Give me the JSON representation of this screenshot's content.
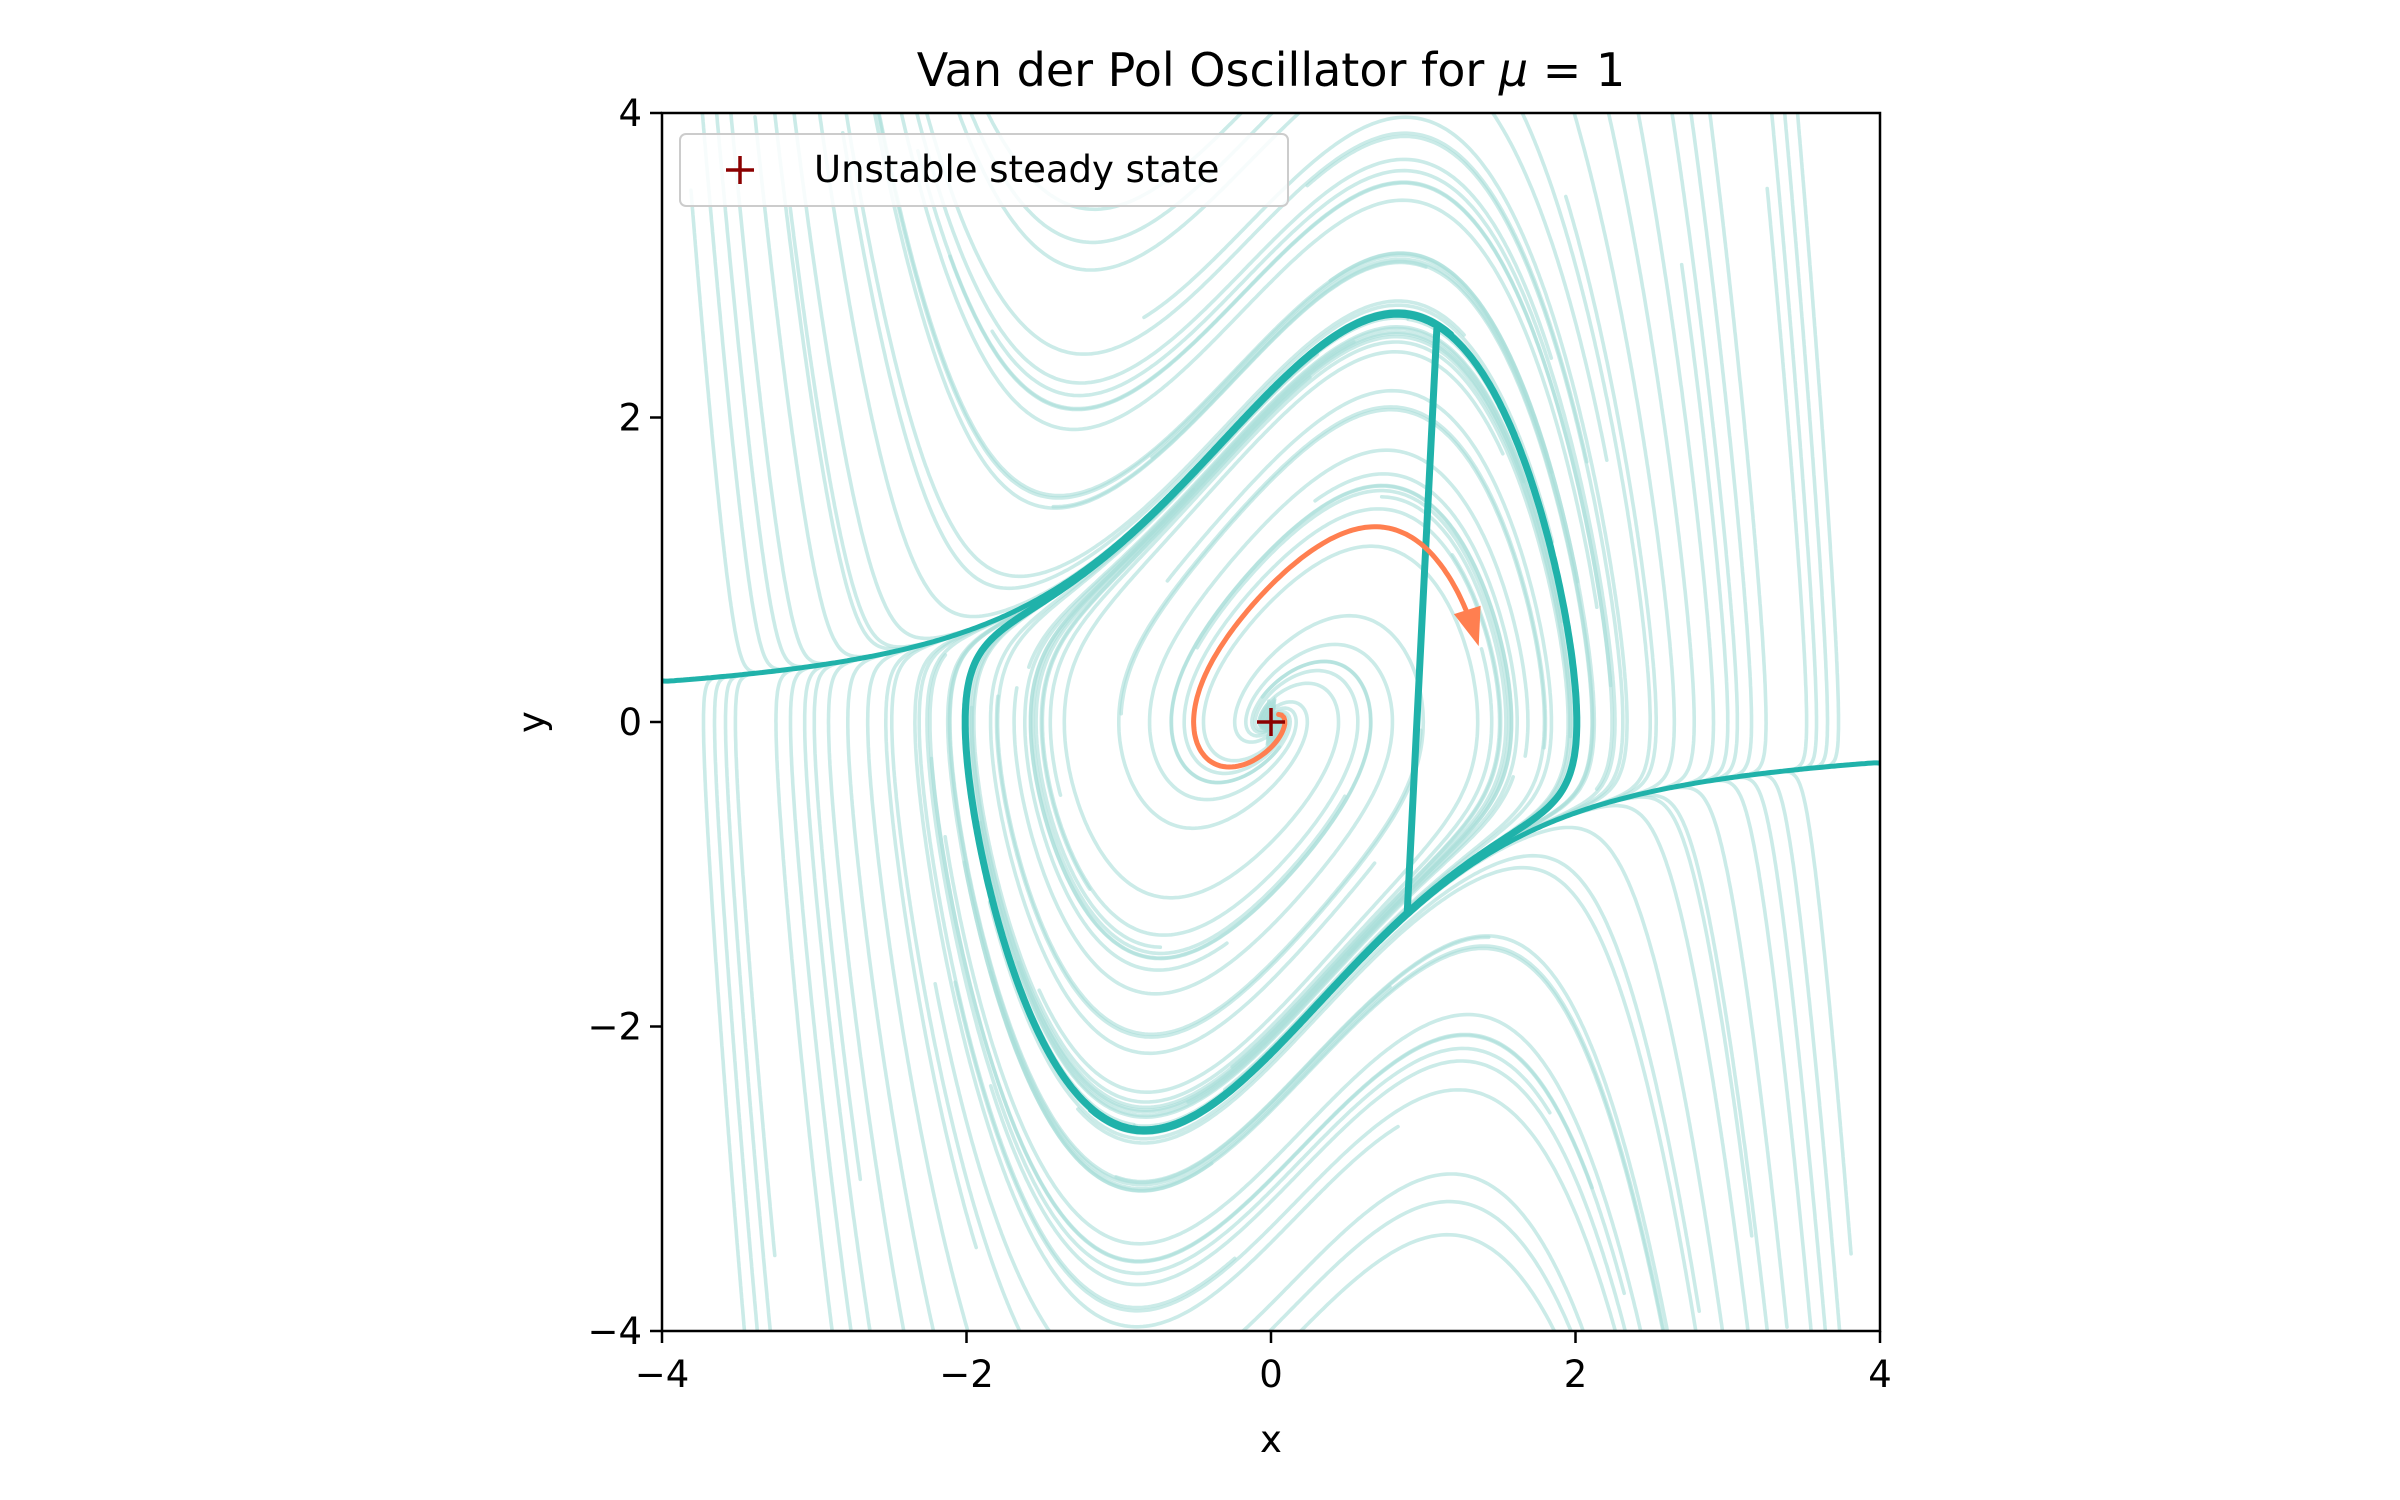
{
  "chart_data": {
    "type": "streamplot",
    "title": "Van der Pol Oscillator for μ = 1",
    "title_parts": {
      "main": "Van der Pol Oscillator for ",
      "mu": "μ",
      "rest": " = 1"
    },
    "xlabel": "x",
    "ylabel": "y",
    "xlim": [
      -4,
      4
    ],
    "ylim": [
      -4,
      4
    ],
    "xticks": [
      -4,
      -2,
      0,
      2,
      4
    ],
    "yticks": [
      -4,
      -2,
      0,
      2,
      4
    ],
    "xtick_labels": [
      "−4",
      "−2",
      "0",
      "2",
      "4"
    ],
    "ytick_labels": [
      "−4",
      "−2",
      "0",
      "2",
      "4"
    ],
    "grid": false,
    "legend_position": "top-left",
    "legend_label": "Unstable steady state",
    "mu": 1,
    "steady_state": {
      "x": 0,
      "y": 0,
      "marker": "+",
      "color": "#8b0000"
    },
    "colors": {
      "streamlines": "#a8ddd8",
      "limit_cycle": "#20b2aa",
      "trajectory": "#ff7f50",
      "marker": "#8b0000"
    },
    "trajectory": {
      "start": [
        0.05,
        0.05
      ],
      "end_arrow": [
        0.6,
        1.45
      ]
    }
  }
}
